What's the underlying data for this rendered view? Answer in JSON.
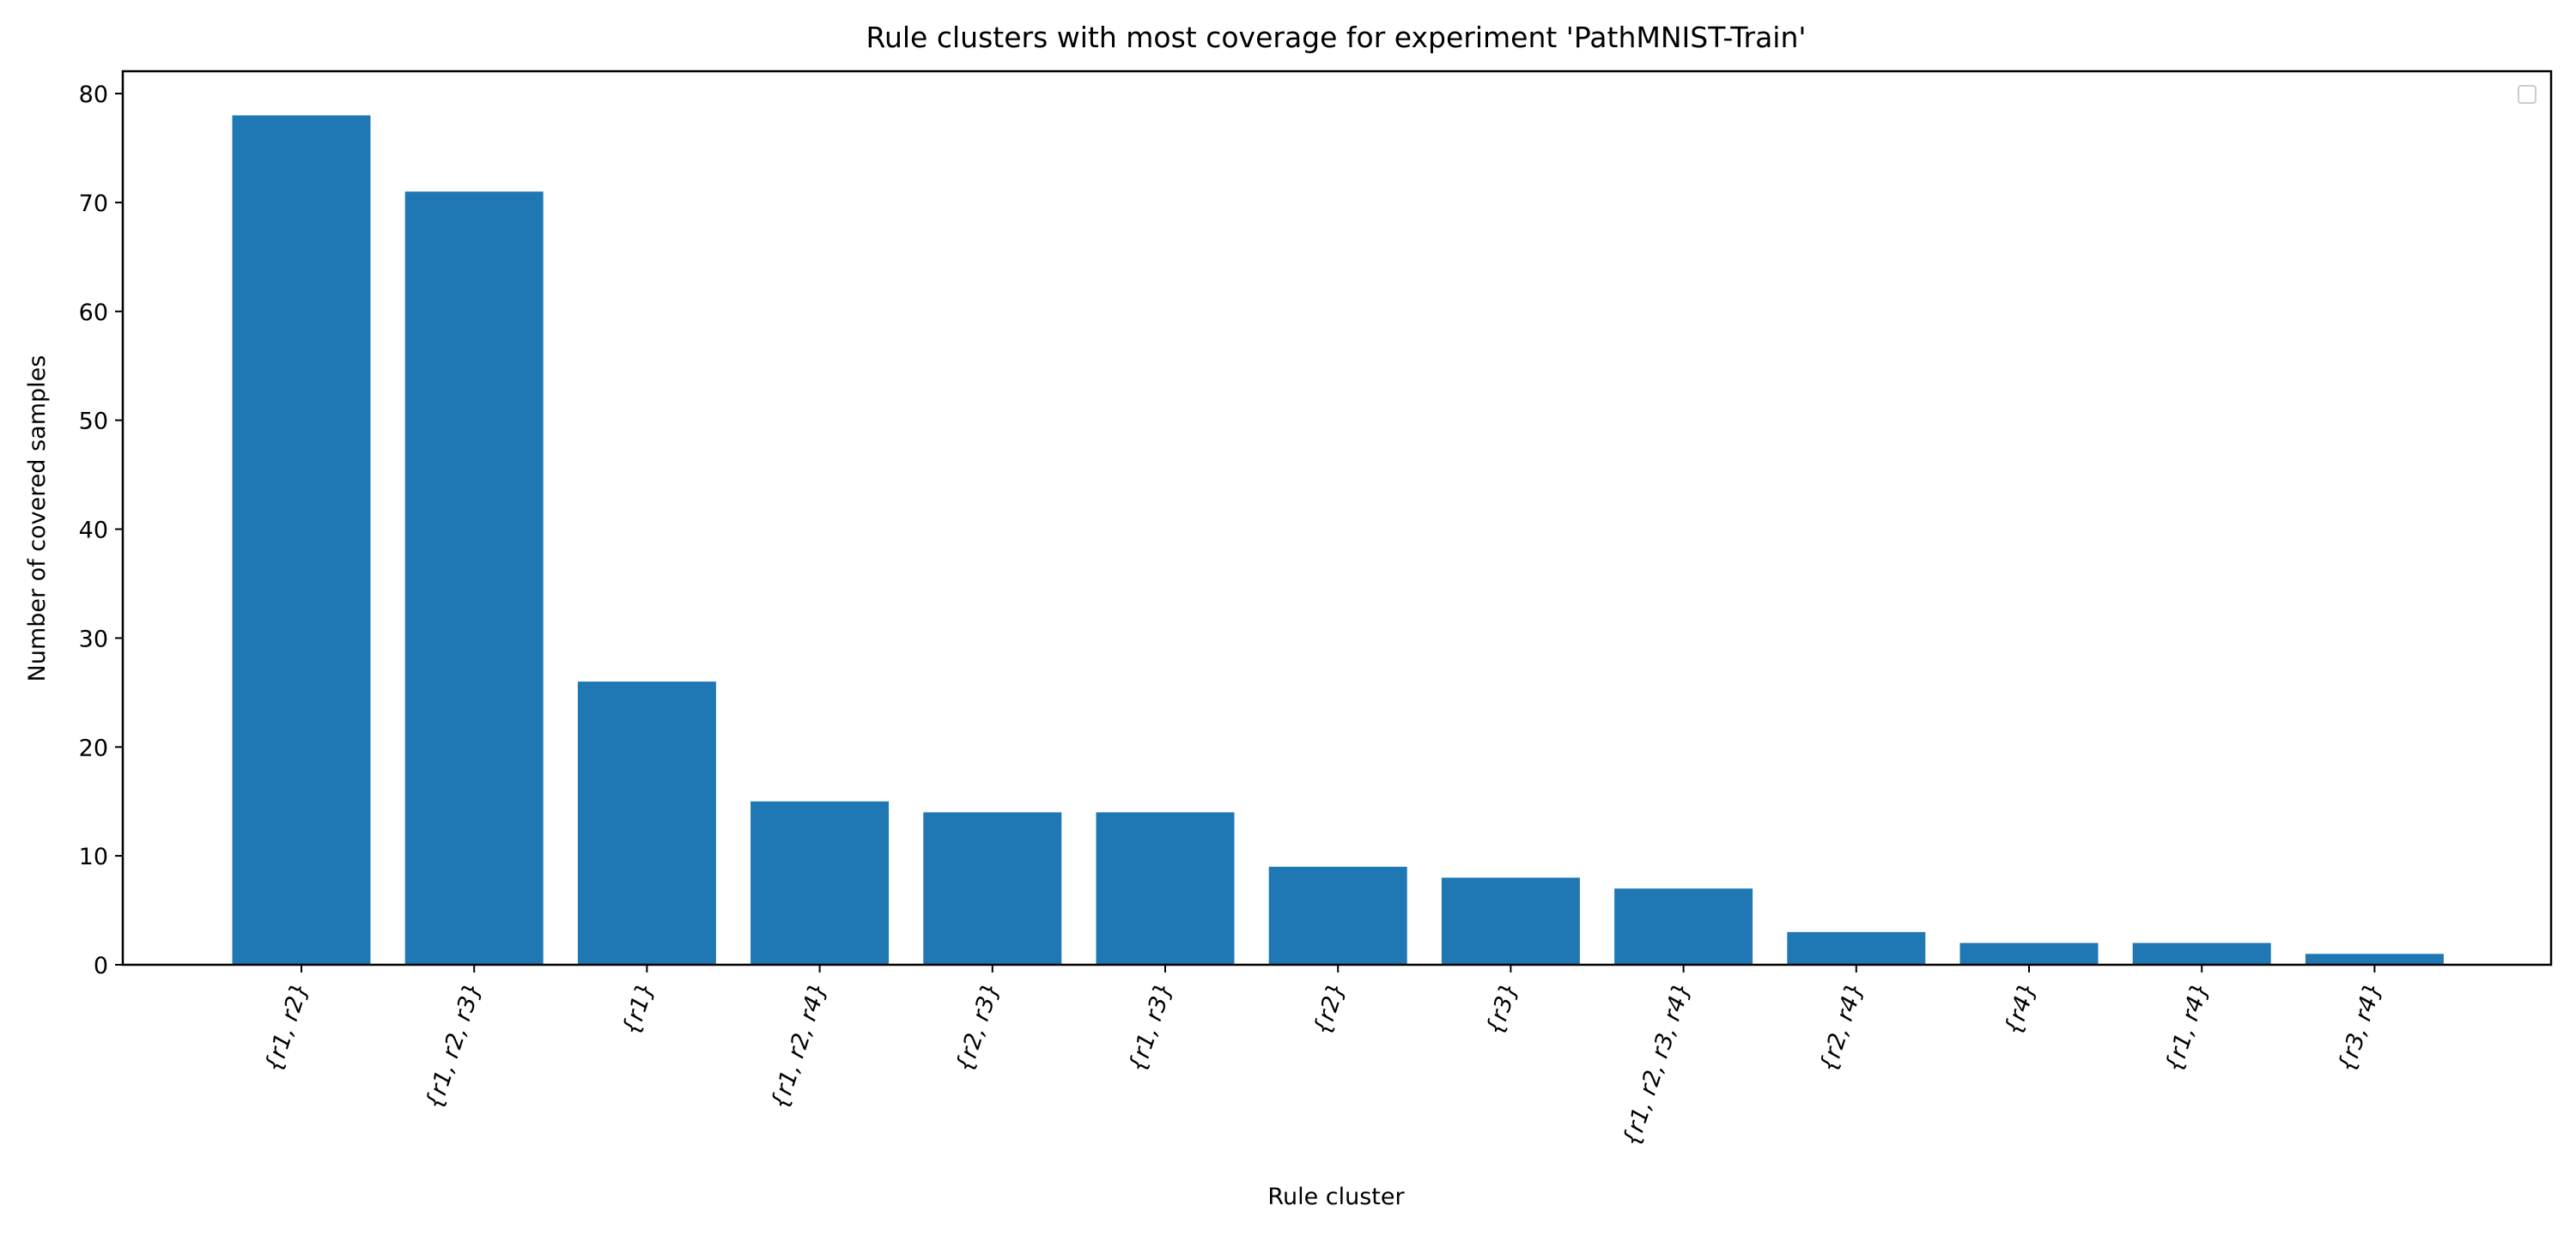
{
  "chart_data": {
    "type": "bar",
    "title": "Rule clusters with most coverage for experiment 'PathMNIST-Train'",
    "xlabel": "Rule cluster",
    "ylabel": "Number of covered samples",
    "categories": [
      "{r1, r2}",
      "{r1, r2, r3}",
      "{r1}",
      "{r1, r2, r4}",
      "{r2, r3}",
      "{r1, r3}",
      "{r2}",
      "{r3}",
      "{r1, r2, r3, r4}",
      "{r2, r4}",
      "{r4}",
      "{r1, r4}",
      "{r3, r4}"
    ],
    "values": [
      78,
      71,
      26,
      15,
      14,
      14,
      9,
      8,
      7,
      3,
      2,
      2,
      1
    ],
    "ylim": [
      0,
      82
    ],
    "yticks": [
      0,
      10,
      20,
      30,
      40,
      50,
      60,
      70,
      80
    ],
    "grid": false,
    "legend": "top-right (empty)",
    "bar_color": "#1f77b4"
  }
}
